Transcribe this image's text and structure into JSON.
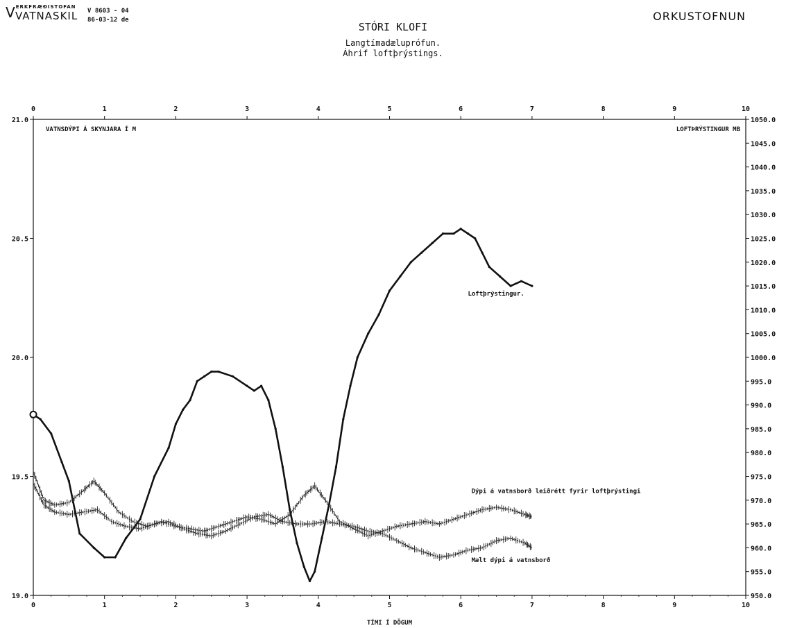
{
  "header": {
    "left_logo_line1": "VATNASKIL",
    "left_logo_small": "ERKFRÆÐISTOFAN",
    "left_code": "V 8603 - 04",
    "left_date": "86-03-12  de",
    "right_org": "ORKUSTOFNUN"
  },
  "chart_data": {
    "type": "line",
    "title": "STÓRI KLOFI",
    "subtitle": [
      "Langtímadæluprófun.",
      "Áhrif loftþrýstings."
    ],
    "xlabel": "TÍMI Í DÖGUM",
    "ylabel_left": "VATNSDÝPI Á SKYNJARA Í M",
    "ylabel_right": "LOFTÞRÝSTINGUR MB",
    "xlim": [
      0,
      10
    ],
    "ylim_left": [
      19.0,
      21.0
    ],
    "ylim_right": [
      950.0,
      1050.0
    ],
    "x_ticks": [
      "0",
      "1",
      "2",
      "3",
      "4",
      "5",
      "6",
      "7",
      "8",
      "9",
      "10"
    ],
    "y_left_ticks": [
      "19.0",
      "19.5",
      "20.0",
      "20.5",
      "21.0"
    ],
    "y_right_ticks": [
      "950.0",
      "955.0",
      "960.0",
      "965.0",
      "970.0",
      "975.0",
      "980.0",
      "985.0",
      "990.0",
      "995.0",
      "1000.0",
      "1005.0",
      "1010.0",
      "1015.0",
      "1020.0",
      "1025.0",
      "1030.0",
      "1035.0",
      "1040.0",
      "1045.0",
      "1050.0"
    ],
    "grid": false,
    "series": [
      {
        "name": "Loftþrýstingur.",
        "axis": "right",
        "style": "thick",
        "x": [
          0,
          0.1,
          0.25,
          0.4,
          0.5,
          0.65,
          0.85,
          1.0,
          1.15,
          1.3,
          1.5,
          1.7,
          1.9,
          2.0,
          2.1,
          2.2,
          2.3,
          2.4,
          2.5,
          2.6,
          2.8,
          3.0,
          3.1,
          3.2,
          3.3,
          3.4,
          3.5,
          3.6,
          3.7,
          3.8,
          3.88,
          3.95,
          4.05,
          4.15,
          4.25,
          4.35,
          4.45,
          4.55,
          4.7,
          4.85,
          5.0,
          5.15,
          5.3,
          5.45,
          5.6,
          5.75,
          5.9,
          6.0,
          6.1,
          6.2,
          6.3,
          6.4,
          6.55,
          6.7,
          6.85,
          7.0
        ],
        "values": [
          988,
          987,
          984,
          978,
          974,
          963,
          960,
          958,
          958,
          962,
          966,
          975,
          981,
          986,
          989,
          991,
          995,
          996,
          997,
          997,
          996,
          994,
          993,
          994,
          991,
          985,
          977,
          968,
          961,
          956,
          953,
          955,
          962,
          969,
          977,
          987,
          994,
          1000,
          1005,
          1009,
          1014,
          1017,
          1020,
          1022,
          1024,
          1026,
          1026,
          1027,
          1026,
          1025,
          1022,
          1019,
          1017,
          1015,
          1016,
          1015
        ]
      },
      {
        "name": "Dýpi á vatnsborð leiðrétt fyrir loftþrýstingi",
        "axis": "left",
        "style": "noisy",
        "x": [
          0,
          0.15,
          0.3,
          0.5,
          0.7,
          0.85,
          1.0,
          1.2,
          1.4,
          1.6,
          1.8,
          2.0,
          2.2,
          2.4,
          2.6,
          2.8,
          3.0,
          3.2,
          3.4,
          3.6,
          3.8,
          3.95,
          4.1,
          4.3,
          4.5,
          4.7,
          4.9,
          5.1,
          5.3,
          5.5,
          5.7,
          5.9,
          6.1,
          6.3,
          6.5,
          6.7,
          6.9,
          7.0
        ],
        "values": [
          19.52,
          19.4,
          19.38,
          19.39,
          19.44,
          19.48,
          19.43,
          19.35,
          19.31,
          19.29,
          19.31,
          19.29,
          19.28,
          19.27,
          19.29,
          19.31,
          19.33,
          19.32,
          19.3,
          19.34,
          19.42,
          19.46,
          19.4,
          19.31,
          19.28,
          19.25,
          19.27,
          19.29,
          19.3,
          19.31,
          19.3,
          19.32,
          19.34,
          19.36,
          19.37,
          19.36,
          19.34,
          19.33
        ]
      },
      {
        "name": "Mælt dýpi á vatnsborð",
        "axis": "left",
        "style": "noisy",
        "x": [
          0,
          0.15,
          0.3,
          0.5,
          0.7,
          0.9,
          1.1,
          1.3,
          1.5,
          1.7,
          1.9,
          2.1,
          2.3,
          2.5,
          2.7,
          2.9,
          3.1,
          3.3,
          3.5,
          3.7,
          3.9,
          4.1,
          4.3,
          4.5,
          4.7,
          4.9,
          5.1,
          5.3,
          5.5,
          5.7,
          5.9,
          6.1,
          6.3,
          6.5,
          6.7,
          6.9,
          7.0
        ],
        "values": [
          19.47,
          19.38,
          19.35,
          19.34,
          19.35,
          19.36,
          19.31,
          19.29,
          19.28,
          19.3,
          19.31,
          19.28,
          19.26,
          19.25,
          19.27,
          19.3,
          19.33,
          19.34,
          19.31,
          19.3,
          19.3,
          19.31,
          19.3,
          19.29,
          19.27,
          19.26,
          19.23,
          19.2,
          19.18,
          19.16,
          19.17,
          19.19,
          19.2,
          19.23,
          19.24,
          19.22,
          19.2
        ]
      }
    ],
    "annotations": [
      {
        "text": "Loftþrýstingur.",
        "x": 6.1,
        "y_right": 1013
      },
      {
        "text": "Dýpi á vatnsborð leiðrétt fyrir loftþrýstingi",
        "x": 6.15,
        "y_left": 19.43
      },
      {
        "text": "Mælt dýpi á vatnsborð",
        "x": 6.15,
        "y_left": 19.14
      }
    ]
  }
}
